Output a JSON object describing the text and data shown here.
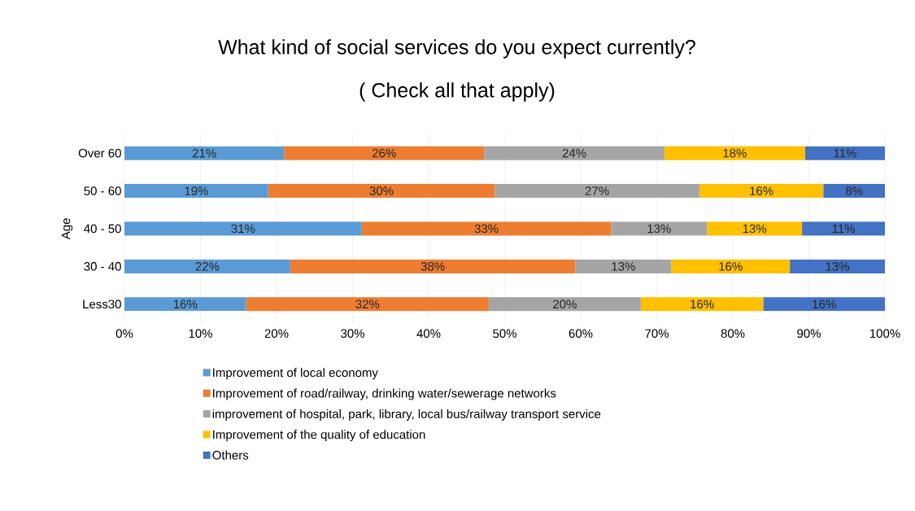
{
  "chart_data": {
    "type": "bar",
    "orientation": "horizontal",
    "stacked": true,
    "title": "What kind of social services do you expect currently?",
    "subtitle": "( Check all that apply)",
    "ylabel": "Age",
    "categories": [
      "Over 60",
      "50 - 60",
      "40 - 50",
      "30 - 40",
      "Less30"
    ],
    "series": [
      {
        "name": "Improvement of local economy",
        "color": "#5b9bd5",
        "values": [
          21.0,
          18.9,
          31.2,
          21.8,
          16.0
        ],
        "value_labels": [
          "21%",
          "19%",
          "31%",
          "22%",
          "16%"
        ]
      },
      {
        "name": "Improvement of road/railway, drinking water/sewerage networks",
        "color": "#ed7d31",
        "values": [
          26.3,
          29.8,
          32.8,
          37.5,
          31.9
        ],
        "value_labels": [
          "26%",
          "30%",
          "33%",
          "38%",
          "32%"
        ]
      },
      {
        "name": "improvement of hospital, park, library, local bus/railway transport service",
        "color": "#a5a5a5",
        "values": [
          23.7,
          26.9,
          12.6,
          12.6,
          20.0
        ],
        "value_labels": [
          "24%",
          "27%",
          "13%",
          "13%",
          "20%"
        ]
      },
      {
        "name": "Improvement of the quality of education",
        "color": "#ffc000",
        "values": [
          18.5,
          16.3,
          12.5,
          15.6,
          16.1
        ],
        "value_labels": [
          "18%",
          "16%",
          "13%",
          "16%",
          "16%"
        ]
      },
      {
        "name": "Others",
        "color": "#4472c4",
        "values": [
          10.5,
          8.1,
          10.9,
          12.5,
          16.0
        ],
        "value_labels": [
          "11%",
          "8%",
          "11%",
          "13%",
          "16%"
        ]
      }
    ],
    "xlim": [
      0,
      100
    ],
    "xticks": [
      {
        "value": 0,
        "label": "0%"
      },
      {
        "value": 10,
        "label": "10%"
      },
      {
        "value": 20,
        "label": "20%"
      },
      {
        "value": 30,
        "label": "30%"
      },
      {
        "value": 40,
        "label": "40%"
      },
      {
        "value": 50,
        "label": "50%"
      },
      {
        "value": 60,
        "label": "60%"
      },
      {
        "value": 70,
        "label": "70%"
      },
      {
        "value": 80,
        "label": "80%"
      },
      {
        "value": 90,
        "label": "90%"
      },
      {
        "value": 100,
        "label": "100%"
      }
    ],
    "grid": "x",
    "legend": "bottom"
  }
}
